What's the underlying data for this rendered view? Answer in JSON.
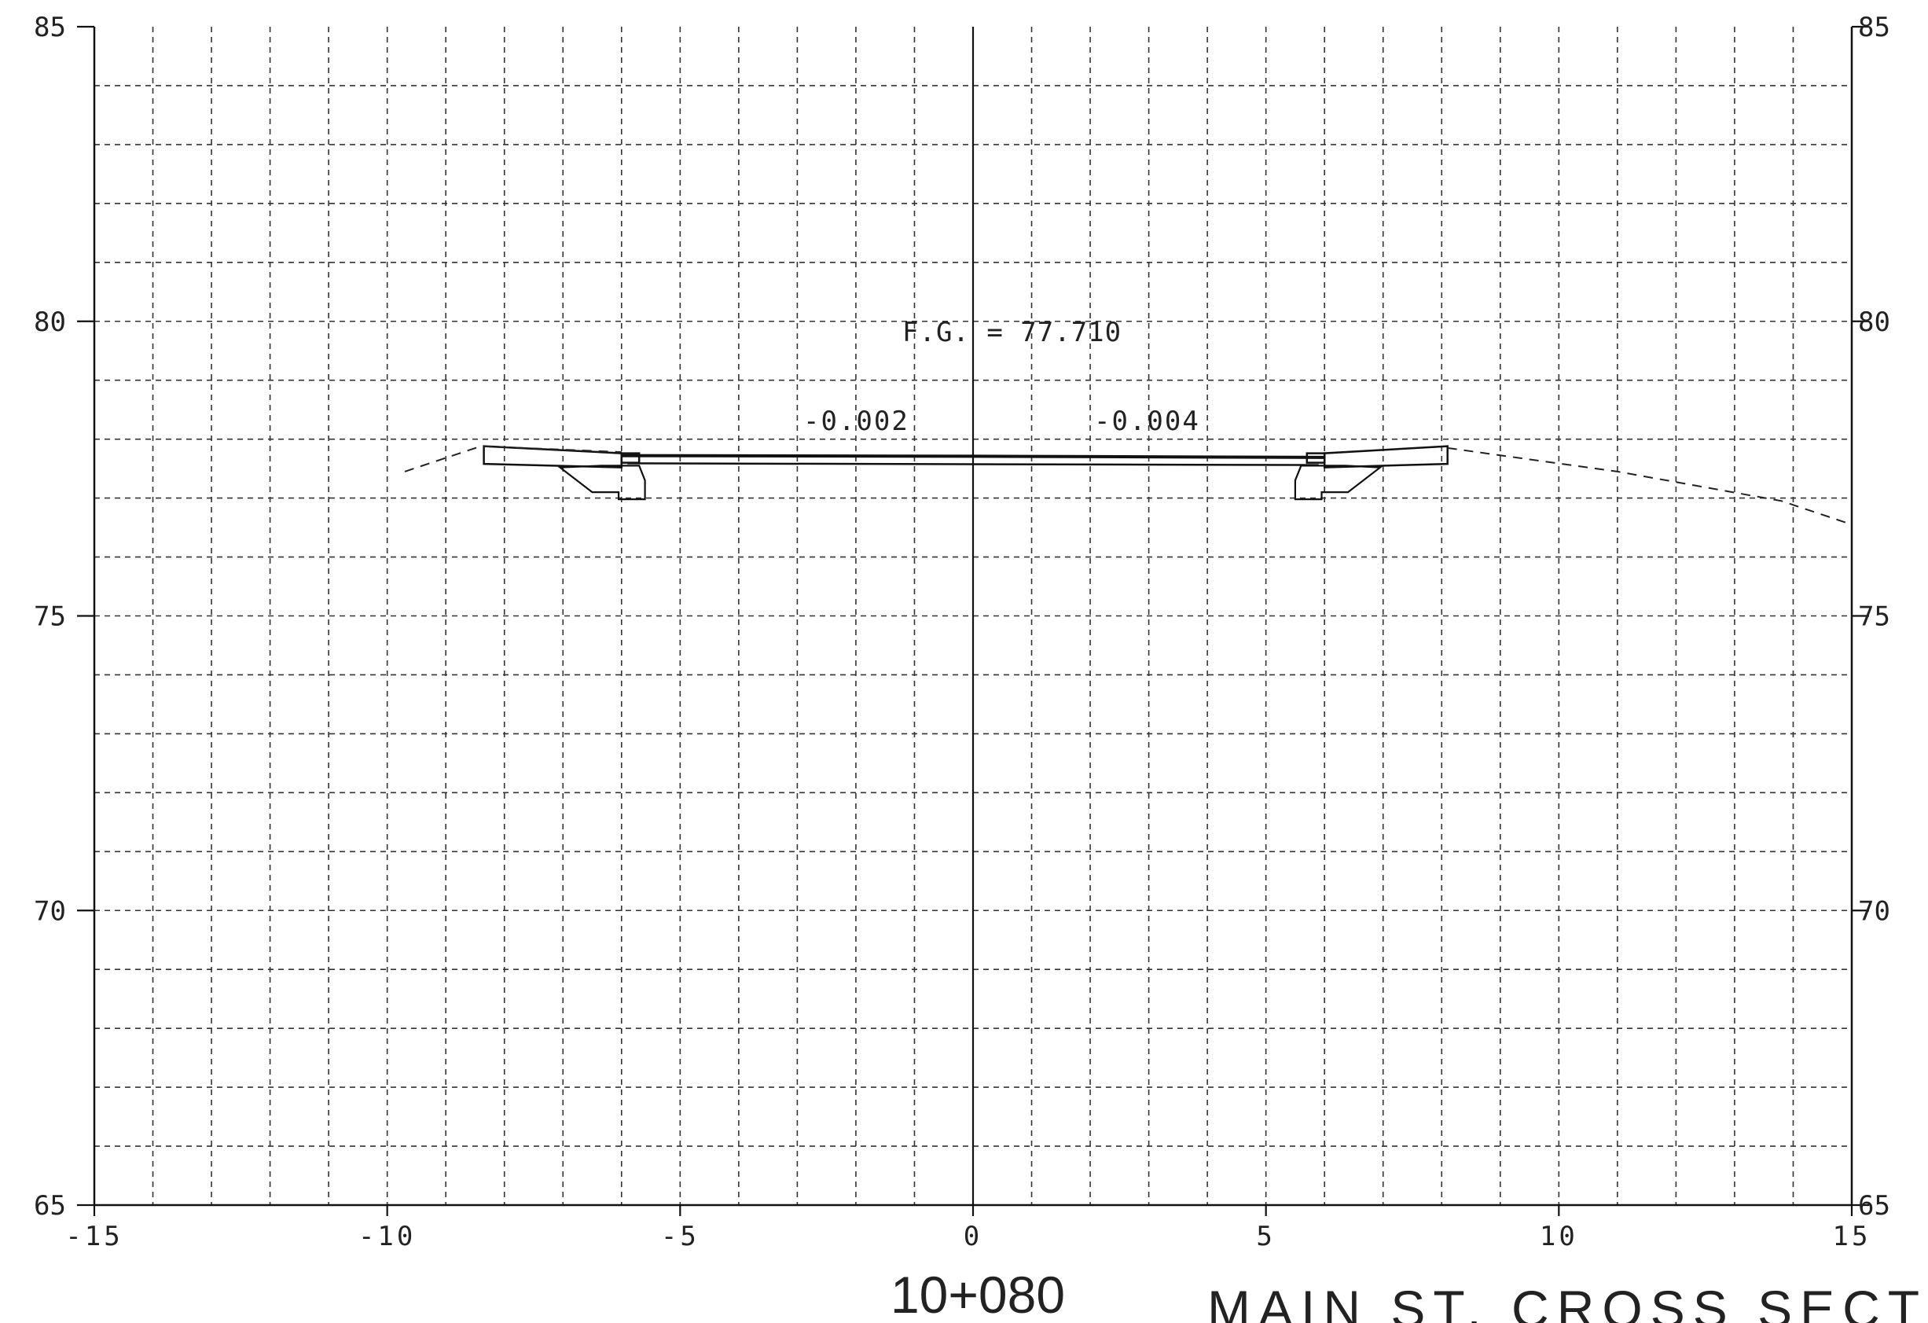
{
  "drawing": {
    "station": "10+080",
    "title": "MAIN ST. CROSS SECTIO",
    "fg_label": "F.G. = 77.710",
    "slope_left": "-0.002",
    "slope_right": "-0.004"
  },
  "chart_data": {
    "type": "line",
    "grid": true,
    "xlim": [
      -15,
      15
    ],
    "ylim": [
      65,
      85
    ],
    "x_ticks": [
      -15,
      -10,
      -5,
      0,
      5,
      10,
      15
    ],
    "x_tick_labels": [
      "-15",
      "-10",
      "-5",
      "0",
      "5",
      "10",
      "15"
    ],
    "y_ticks": [
      65,
      70,
      75,
      80,
      85
    ],
    "y_tick_labels": [
      "65",
      "70",
      "75",
      "80",
      "85"
    ],
    "finished_grade": 77.71,
    "cross_slopes": [
      -0.002,
      -0.004
    ],
    "series": [
      {
        "values": [
          [
            -9.7,
            77.45
          ],
          [
            -8.4,
            77.88
          ],
          [
            -6.0,
            77.78
          ]
        ]
      },
      {
        "values": [
          [
            -6.0,
            77.72
          ],
          [
            0,
            77.71
          ],
          [
            6.0,
            77.69
          ]
        ]
      },
      {
        "values": [
          [
            6.0,
            77.78
          ],
          [
            8.1,
            77.88
          ]
        ]
      },
      {
        "values": [
          [
            8.1,
            77.85
          ],
          [
            11.0,
            77.45
          ],
          [
            13.8,
            76.95
          ],
          [
            15.0,
            76.55
          ]
        ]
      }
    ]
  }
}
